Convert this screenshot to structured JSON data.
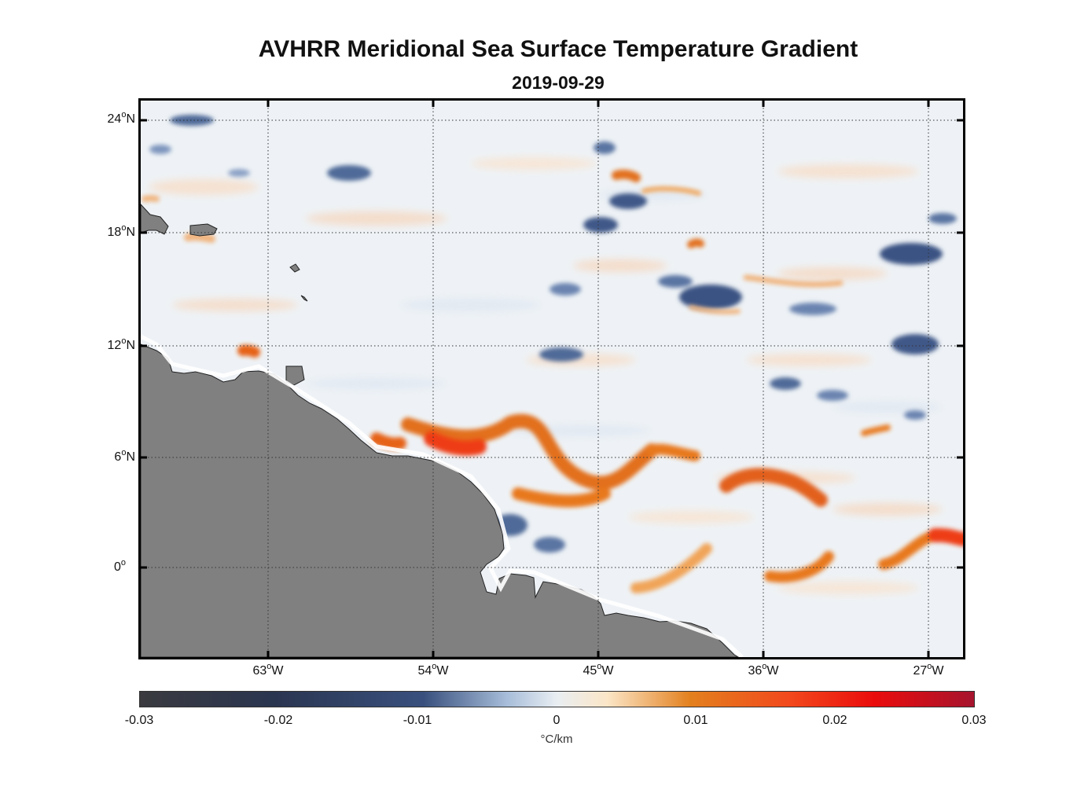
{
  "map": {
    "title": "AVHRR Meridional Sea Surface Temperature Gradient",
    "date": "2019-09-29",
    "lat_ticks": [
      "24",
      "18",
      "12",
      "6",
      "0"
    ],
    "lat_suffixes": [
      "N",
      "N",
      "N",
      "N",
      ""
    ],
    "lon_ticks": [
      "63",
      "54",
      "45",
      "36",
      "27"
    ],
    "lon_suffix": "W",
    "degree_symbol": "o",
    "land_color": "#808080",
    "colorbar": {
      "ticks": [
        "-0.03",
        "-0.02",
        "-0.01",
        "0",
        "0.01",
        "0.02",
        "0.03"
      ],
      "unit": "°C/km",
      "colors": [
        "#3a3a3f",
        "#2a3550",
        "#39507e",
        "#e9eef2",
        "#e3801e",
        "#ea0c0c",
        "#a6142e"
      ]
    }
  }
}
